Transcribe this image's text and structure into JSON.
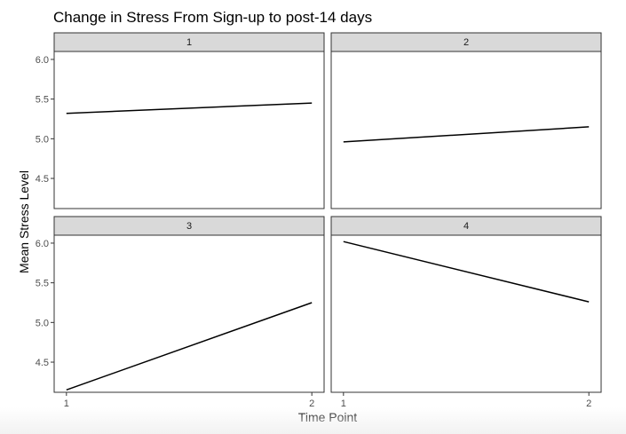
{
  "chart_data": {
    "type": "line",
    "title": "Change in Stress From Sign-up to post-14 days",
    "xlabel": "Time Point",
    "ylabel": "Mean Stress Level",
    "x_ticks": [
      "1",
      "2"
    ],
    "y_ticks": [
      "4.5",
      "5.0",
      "5.5",
      "6.0"
    ],
    "xlim": [
      0.95,
      2.05
    ],
    "ylim": [
      4.12,
      6.1
    ],
    "grid": false,
    "panels": [
      {
        "label": "1",
        "x": [
          1,
          2
        ],
        "y": [
          5.32,
          5.45
        ]
      },
      {
        "label": "2",
        "x": [
          1,
          2
        ],
        "y": [
          4.96,
          5.15
        ]
      },
      {
        "label": "3",
        "x": [
          1,
          2
        ],
        "y": [
          4.15,
          5.25
        ]
      },
      {
        "label": "4",
        "x": [
          1,
          2
        ],
        "y": [
          6.02,
          5.26
        ]
      }
    ],
    "colors": {
      "line": "#000000",
      "strip": "#d9d9d9",
      "panel_border": "#333333",
      "tick_text": "#4d4d4d"
    }
  }
}
